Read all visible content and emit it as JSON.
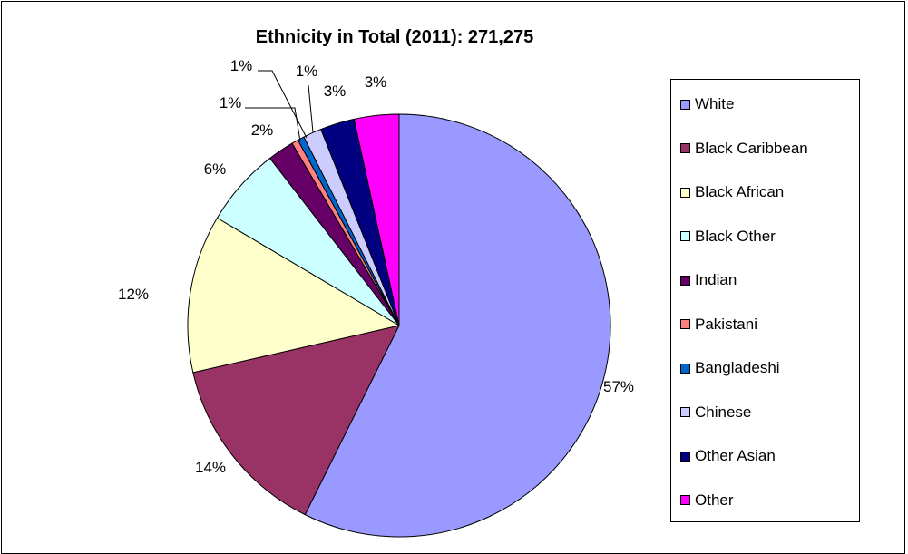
{
  "chart_data": {
    "type": "pie",
    "title": "Ethnicity in Total (2011): 271,275",
    "legend_position": "right",
    "slices": [
      {
        "label": "White",
        "value": 57,
        "display": "57%",
        "color": "#9999FF"
      },
      {
        "label": "Black Caribbean",
        "value": 14,
        "display": "14%",
        "color": "#993366"
      },
      {
        "label": "Black African",
        "value": 12,
        "display": "12%",
        "color": "#FFFFCC"
      },
      {
        "label": "Black Other",
        "value": 6,
        "display": "6%",
        "color": "#CCFFFF"
      },
      {
        "label": "Indian",
        "value": 2,
        "display": "2%",
        "color": "#660066"
      },
      {
        "label": "Pakistani",
        "value": 0.5,
        "display": "1%",
        "color": "#FF8080"
      },
      {
        "label": "Bangladeshi",
        "value": 0.5,
        "display": "1%",
        "color": "#0066CC"
      },
      {
        "label": "Chinese",
        "value": 1.4,
        "display": "1%",
        "color": "#CCCCFF"
      },
      {
        "label": "Other Asian",
        "value": 2.6,
        "display": "3%",
        "color": "#000080"
      },
      {
        "label": "Other",
        "value": 3.4,
        "display": "3%",
        "color": "#FF00FF"
      }
    ]
  }
}
